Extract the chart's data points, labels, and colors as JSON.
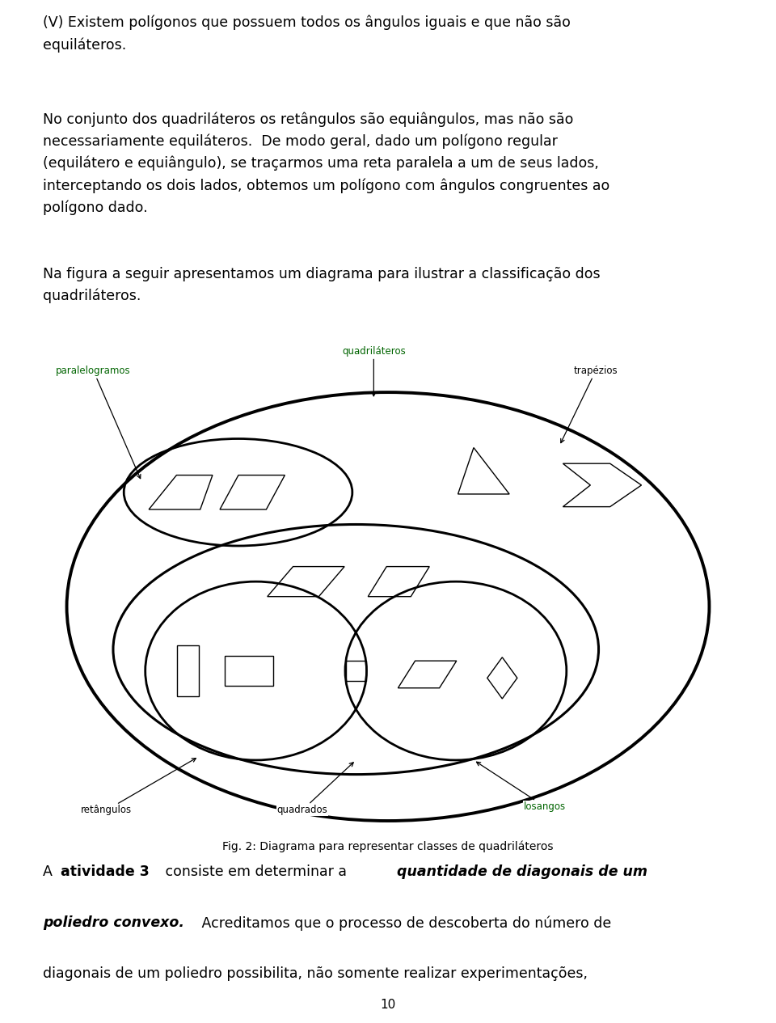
{
  "fig_caption": "Fig. 2: Diagrama para representar classes de quadriláteros",
  "page_number": "10",
  "labels": {
    "quadrilateros": "quadriláteros",
    "paralelogramos": "paralelogramos",
    "trapezios": "trapézios",
    "retangulos": "retângulos",
    "quadrados": "quadrados",
    "losangos": "losangos"
  },
  "green": "#006400",
  "black": "#000000",
  "white": "#ffffff",
  "lw_outer": 2.8,
  "lw_inner": 2.2,
  "lw_circle": 2.0,
  "lw_oval": 2.0,
  "lw_shape": 1.0,
  "fontsize_label": 8.5,
  "fontsize_text": 12.5,
  "fontsize_caption": 10,
  "fontsize_page": 11
}
